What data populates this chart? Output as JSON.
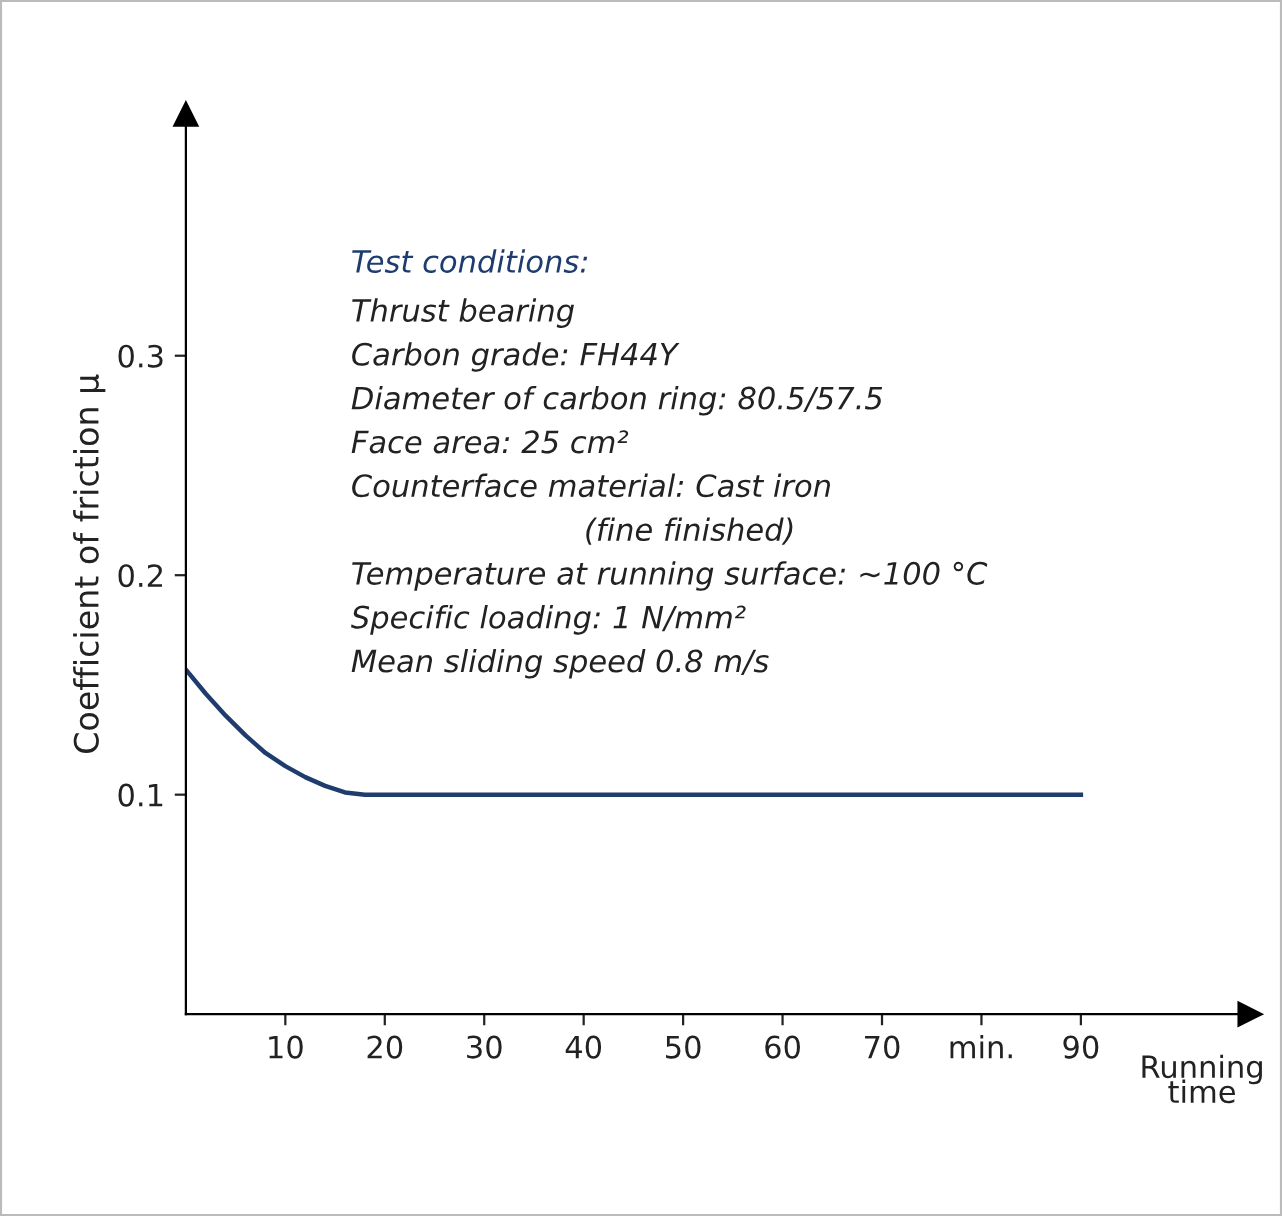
{
  "chart_data": {
    "type": "line",
    "ylabel": "Coefficient of friction µ",
    "xlabel": "Running\ntime",
    "x": [
      0,
      2,
      4,
      6,
      8,
      10,
      12,
      14,
      16,
      18,
      20,
      90
    ],
    "series": [
      {
        "color": "#1f3c6e",
        "values": [
          0.157,
          0.146,
          0.136,
          0.127,
          0.119,
          0.113,
          0.108,
          0.104,
          0.101,
          0.1,
          0.1,
          0.1
        ]
      }
    ],
    "xlim": [
      0,
      107
    ],
    "ylim": [
      0,
      0.41
    ],
    "xticks": [
      10,
      20,
      30,
      40,
      50,
      60,
      70,
      {
        "value": 80,
        "label": "min."
      },
      90
    ],
    "yticks": [
      0.1,
      0.2,
      0.3
    ],
    "grid": false,
    "legend": false,
    "marker": "none",
    "line_style": "solid",
    "annotations": [
      "Test conditions:",
      "Thrust bearing",
      "Carbon grade: FH44Y",
      "Diameter of carbon ring: 80.5/57.5",
      "Face area: 25 cm²",
      "Counterface material: Cast iron",
      "                        (fine finished)",
      "Temperature at running surface: ~100 °C",
      "Specific loading: 1 N/mm²",
      "Mean sliding speed 0.8 m/s"
    ]
  }
}
